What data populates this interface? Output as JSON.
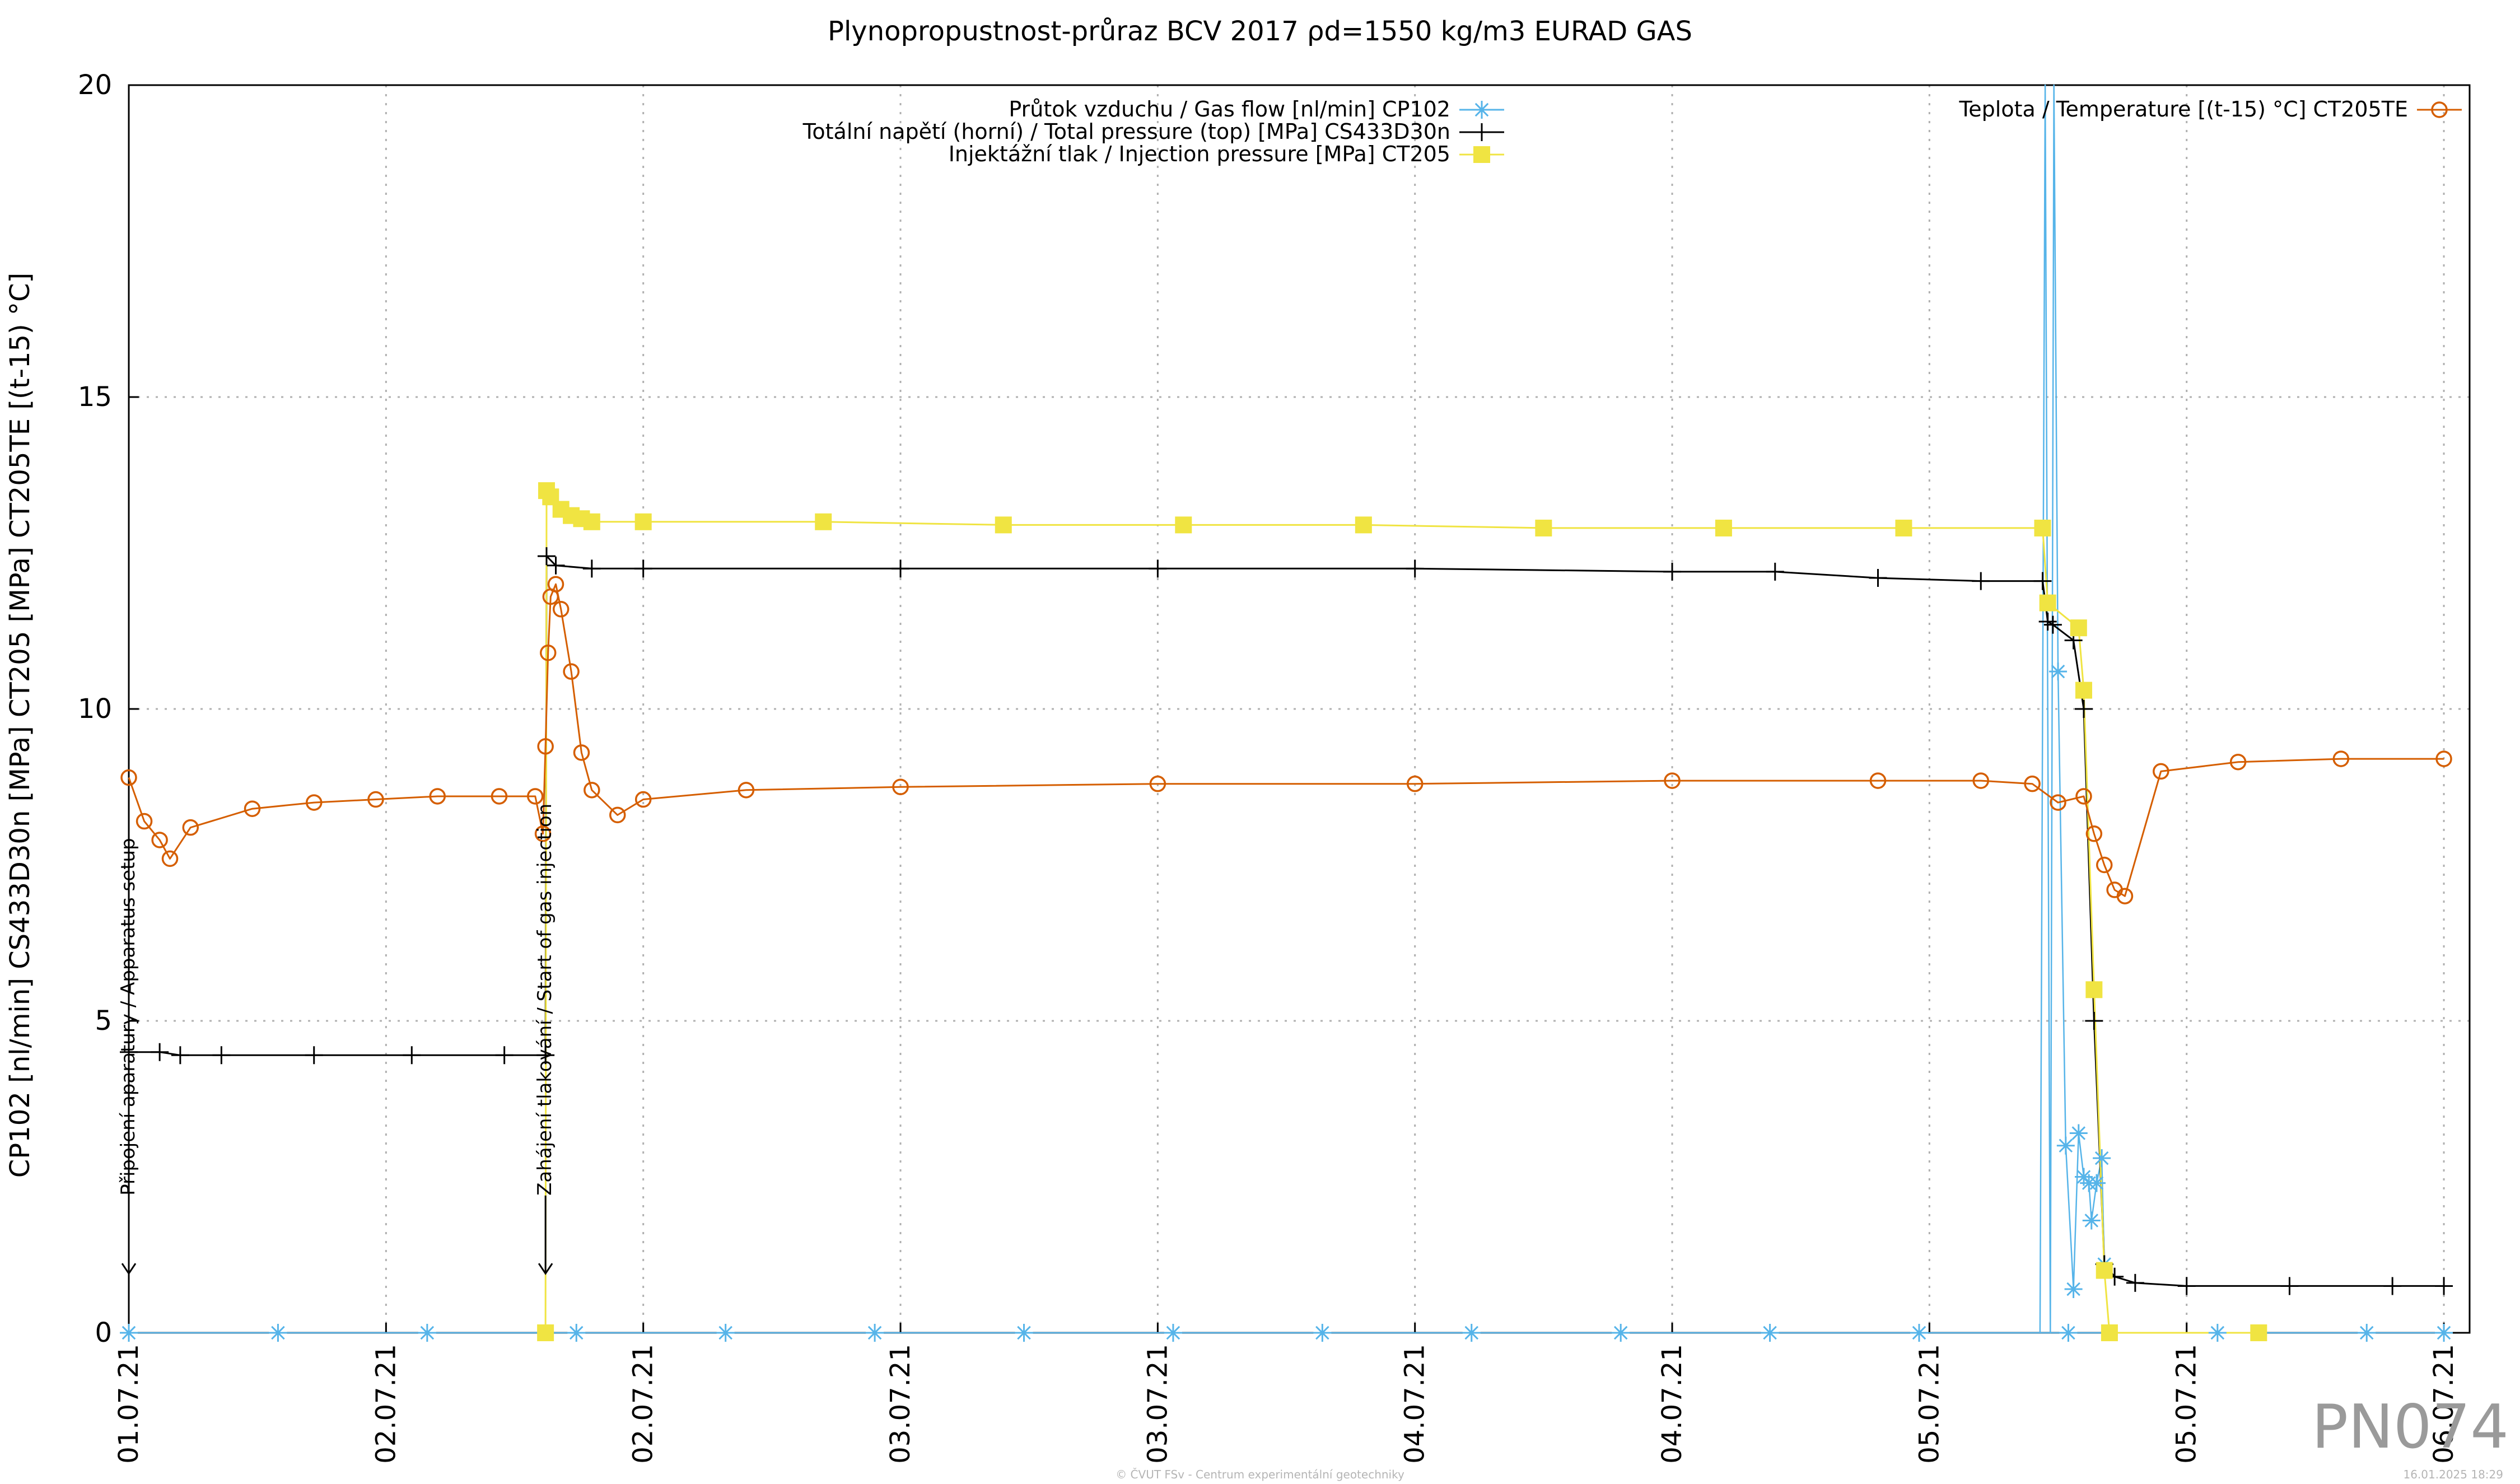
{
  "chart_data": {
    "type": "line",
    "title": "Plynopropustnost-průraz BCV 2017 ρd=1550 kg/m3 EURAD GAS",
    "ylabel": "CP102 [nl/min] CS433D30n [MPa] CT205 [MPa] CT205TE [(t-15) °C]",
    "ylim": [
      0,
      20
    ],
    "yticks": [
      0,
      5,
      10,
      15,
      20
    ],
    "xlim": [
      0,
      4.55
    ],
    "xunit": "days since 01.07.21 00:00",
    "xtick_labels": [
      "01.07.21",
      "02.07.21",
      "02.07.21",
      "03.07.21",
      "03.07.21",
      "04.07.21",
      "04.07.21",
      "05.07.21",
      "05.07.21",
      "06.07.21"
    ],
    "xtick_positions": [
      0,
      0.5,
      1.0,
      1.5,
      2.0,
      2.5,
      3.0,
      3.5,
      4.0,
      4.5
    ],
    "grid": true,
    "legend_placement": "top",
    "series": [
      {
        "name": "Průtok vzduchu / Gas flow [nl/min] CP102",
        "color": "#56b4e9",
        "marker": "star",
        "x": [
          0.0,
          0.29,
          0.58,
          0.87,
          1.16,
          1.45,
          1.74,
          2.03,
          2.32,
          2.61,
          2.9,
          3.19,
          3.48,
          3.77,
          4.06,
          4.35,
          4.5
        ],
        "y": [
          0,
          0,
          0,
          0,
          0,
          0,
          0,
          0,
          0,
          0,
          0,
          0,
          0,
          0,
          0,
          0,
          0
        ],
        "spike_x": [
          3.715,
          3.725,
          3.735,
          3.742,
          3.75,
          3.765,
          3.78,
          3.79,
          3.8,
          3.81,
          3.815,
          3.825,
          3.835,
          3.84
        ],
        "spike_y": [
          0,
          20,
          0,
          20,
          10.6,
          3.0,
          0.7,
          3.2,
          2.5,
          2.4,
          1.8,
          2.4,
          2.8,
          1.1
        ]
      },
      {
        "name": "Totální napětí (horní) / Total pressure (top) [MPa] CS433D30n",
        "color": "#000000",
        "marker": "plus",
        "x": [
          0.0,
          0.06,
          0.1,
          0.18,
          0.36,
          0.55,
          0.73,
          0.81,
          0.812,
          0.83,
          0.9,
          1.0,
          1.5,
          2.0,
          2.5,
          3.0,
          3.2,
          3.4,
          3.6,
          3.72,
          3.73,
          3.74,
          3.78,
          3.8,
          3.82,
          3.84,
          3.86,
          3.9,
          4.0,
          4.2,
          4.4,
          4.5
        ],
        "y": [
          4.5,
          4.5,
          4.45,
          4.45,
          4.45,
          4.45,
          4.45,
          4.45,
          12.45,
          12.3,
          12.25,
          12.25,
          12.25,
          12.25,
          12.25,
          12.2,
          12.2,
          12.1,
          12.05,
          12.05,
          11.4,
          11.35,
          11.1,
          10.0,
          5.0,
          1.1,
          0.9,
          0.8,
          0.75,
          0.75,
          0.75,
          0.75
        ]
      },
      {
        "name": "Injektážní tlak / Injection pressure [MPa] CT205",
        "color": "#f0e442",
        "marker": "square",
        "x": [
          0.81,
          0.812,
          0.82,
          0.84,
          0.86,
          0.88,
          0.9,
          1.0,
          1.35,
          1.7,
          2.05,
          2.4,
          2.75,
          3.1,
          3.45,
          3.72,
          3.73,
          3.79,
          3.8,
          3.82,
          3.84,
          3.85,
          4.14
        ],
        "y": [
          0,
          13.5,
          13.4,
          13.2,
          13.1,
          13.05,
          13.0,
          13.0,
          13.0,
          12.95,
          12.95,
          12.95,
          12.9,
          12.9,
          12.9,
          12.9,
          11.7,
          11.3,
          10.3,
          5.5,
          1.0,
          0.0,
          0.0
        ]
      },
      {
        "name": "Teplota / Temperature [(t-15) °C] CT205TE",
        "color": "#d55e00",
        "marker": "circle",
        "x": [
          0.0,
          0.03,
          0.06,
          0.08,
          0.12,
          0.24,
          0.36,
          0.48,
          0.6,
          0.72,
          0.79,
          0.805,
          0.81,
          0.815,
          0.82,
          0.83,
          0.84,
          0.86,
          0.88,
          0.9,
          0.95,
          1.0,
          1.2,
          1.5,
          2.0,
          2.5,
          3.0,
          3.4,
          3.6,
          3.7,
          3.75,
          3.8,
          3.82,
          3.84,
          3.86,
          3.88,
          3.95,
          4.1,
          4.3,
          4.5
        ],
        "y": [
          8.9,
          8.2,
          7.9,
          7.6,
          8.1,
          8.4,
          8.5,
          8.55,
          8.6,
          8.6,
          8.6,
          8.0,
          9.4,
          10.9,
          11.8,
          12.0,
          11.6,
          10.6,
          9.3,
          8.7,
          8.3,
          8.55,
          8.7,
          8.75,
          8.8,
          8.8,
          8.85,
          8.85,
          8.85,
          8.8,
          8.5,
          8.6,
          8.0,
          7.5,
          7.1,
          7.0,
          9.0,
          9.15,
          9.2,
          9.2
        ]
      }
    ],
    "annotations": [
      {
        "text": "Připojení aparatury / Apparatus setup",
        "x": 0.0
      },
      {
        "text": "Zahájení tlakování / Start of gas injection",
        "x": 0.81
      }
    ]
  },
  "footer": {
    "left": "© ČVUT FSv - Centrum experimentální geotechniky",
    "right": "16.01.2025 18:29"
  },
  "watermark": "PN074"
}
